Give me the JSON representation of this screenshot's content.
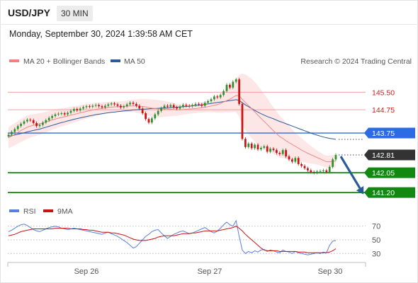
{
  "header": {
    "symbol": "USD/JPY",
    "timeframe": "30 MIN"
  },
  "timestamp": "Monday, September 30, 2024 1:39:58 AM CET",
  "credit": "Research © 2024 Trading Central",
  "colors": {
    "bollinger": "#f08080",
    "ma50": "#2a5a9a",
    "rsi": "#5a7ee0",
    "rsi_ma": "#cc1111",
    "red_level": "#cc2222",
    "blue_level": "#2d6be4",
    "green_level": "#118811",
    "candle_up": "#2f8f2f",
    "candle_down": "#cc1111",
    "arrow": "#2a5a9a"
  },
  "chart_data": [
    {
      "type": "candlestick",
      "legend": [
        {
          "name": "MA 20 + Bollinger Bands",
          "color": "#f08080"
        },
        {
          "name": "MA 50",
          "color": "#2a5a9a"
        }
      ],
      "x_ticks": [
        "Sep 26",
        "Sep 27",
        "Sep 30"
      ],
      "ylim": [
        140.9,
        146.3
      ],
      "levels": [
        {
          "value": 145.5,
          "label": "145.50",
          "style": "red_line"
        },
        {
          "value": 144.75,
          "label": "144.75",
          "style": "red_line"
        },
        {
          "value": 143.75,
          "label": "143.75",
          "style": "blue_line"
        },
        {
          "value": 142.81,
          "label": "142.81",
          "style": "last_price"
        },
        {
          "value": 142.05,
          "label": "142.05",
          "style": "green_line"
        },
        {
          "value": 141.2,
          "label": "141.20",
          "style": "green_line"
        }
      ],
      "close": [
        143.68,
        143.8,
        143.92,
        144.05,
        144.15,
        144.25,
        144.32,
        144.3,
        144.18,
        144.05,
        144.1,
        144.2,
        144.3,
        144.4,
        144.48,
        144.55,
        144.58,
        144.6,
        144.55,
        144.62,
        144.7,
        144.78,
        144.72,
        144.8,
        144.86,
        144.9,
        144.88,
        144.92,
        144.95,
        144.9,
        144.85,
        144.92,
        144.98,
        145.02,
        144.98,
        144.92,
        144.85,
        144.9,
        144.98,
        145.05,
        145.0,
        144.92,
        144.8,
        144.6,
        144.35,
        144.2,
        144.38,
        144.55,
        144.7,
        144.82,
        144.92,
        144.88,
        144.95,
        144.85,
        144.8,
        144.88,
        144.96,
        144.92,
        144.9,
        144.95,
        145.0,
        144.98,
        144.92,
        145.05,
        145.12,
        145.2,
        145.32,
        145.28,
        145.38,
        145.55,
        145.82,
        145.7,
        145.95,
        146.05,
        145.0,
        143.5,
        143.15,
        143.3,
        143.1,
        143.25,
        143.05,
        143.12,
        143.18,
        142.95,
        143.08,
        143.02,
        142.9,
        142.85,
        143.02,
        142.75,
        142.62,
        142.52,
        142.68,
        142.42,
        142.34,
        142.24,
        142.15,
        142.08,
        142.05,
        142.1,
        142.12,
        142.15,
        142.08,
        142.3,
        142.62,
        142.81
      ],
      "ma20": [
        143.55,
        143.62,
        143.7,
        143.78,
        143.86,
        143.93,
        144.0,
        144.05,
        144.08,
        144.11,
        144.14,
        144.18,
        144.22,
        144.27,
        144.31,
        144.35,
        144.39,
        144.42,
        144.45,
        144.48,
        144.52,
        144.55,
        144.58,
        144.62,
        144.65,
        144.68,
        144.71,
        144.74,
        144.77,
        144.79,
        144.81,
        144.83,
        144.85,
        144.86,
        144.87,
        144.88,
        144.88,
        144.89,
        144.9,
        144.91,
        144.91,
        144.91,
        144.9,
        144.89,
        144.87,
        144.84,
        144.82,
        144.8,
        144.79,
        144.79,
        144.79,
        144.78,
        144.77,
        144.76,
        144.75,
        144.75,
        144.76,
        144.77,
        144.78,
        144.79,
        144.8,
        144.82,
        144.84,
        144.86,
        144.88,
        144.91,
        144.94,
        144.97,
        145.02,
        145.08,
        145.14,
        145.2,
        145.28,
        145.36,
        145.35,
        145.2,
        145.06,
        144.93,
        144.8,
        144.66,
        144.52,
        144.38,
        144.25,
        144.12,
        143.98,
        143.85,
        143.72,
        143.6,
        143.52,
        143.42,
        143.34,
        143.26,
        143.18,
        143.1,
        143.02,
        142.95,
        142.88,
        142.82,
        142.76,
        142.7,
        142.64,
        142.58,
        142.52,
        142.52,
        142.53,
        142.56
      ],
      "ma50": [
        143.62,
        143.64,
        143.67,
        143.7,
        143.73,
        143.76,
        143.8,
        143.83,
        143.86,
        143.89,
        143.92,
        143.96,
        144.0,
        144.04,
        144.08,
        144.12,
        144.16,
        144.2,
        144.23,
        144.27,
        144.3,
        144.34,
        144.37,
        144.4,
        144.43,
        144.46,
        144.49,
        144.51,
        144.54,
        144.56,
        144.58,
        144.6,
        144.62,
        144.64,
        144.65,
        144.67,
        144.68,
        144.7,
        144.71,
        144.72,
        144.74,
        144.75,
        144.76,
        144.77,
        144.78,
        144.79,
        144.8,
        144.8,
        144.81,
        144.82,
        144.83,
        144.83,
        144.84,
        144.85,
        144.86,
        144.87,
        144.88,
        144.89,
        144.9,
        144.92,
        144.93,
        144.94,
        144.96,
        144.98,
        145.0,
        145.02,
        145.04,
        145.06,
        145.08,
        145.1,
        145.12,
        145.14,
        145.16,
        145.18,
        145.15,
        145.05,
        144.96,
        144.88,
        144.8,
        144.72,
        144.65,
        144.58,
        144.52,
        144.46,
        144.41,
        144.36,
        144.3,
        144.25,
        144.2,
        144.15,
        144.1,
        144.05,
        144.0,
        143.95,
        143.9,
        143.85,
        143.8,
        143.75,
        143.7,
        143.66,
        143.62,
        143.58,
        143.55,
        143.52,
        143.5,
        143.48
      ],
      "bb_width": [
        0.45,
        0.46,
        0.47,
        0.48,
        0.49,
        0.5,
        0.5,
        0.49,
        0.48,
        0.47,
        0.46,
        0.45,
        0.44,
        0.43,
        0.42,
        0.41,
        0.4,
        0.39,
        0.38,
        0.37,
        0.36,
        0.35,
        0.34,
        0.33,
        0.32,
        0.31,
        0.3,
        0.29,
        0.28,
        0.27,
        0.26,
        0.25,
        0.24,
        0.23,
        0.23,
        0.23,
        0.23,
        0.24,
        0.25,
        0.26,
        0.27,
        0.28,
        0.3,
        0.32,
        0.34,
        0.36,
        0.37,
        0.38,
        0.37,
        0.36,
        0.34,
        0.32,
        0.3,
        0.28,
        0.26,
        0.24,
        0.22,
        0.21,
        0.2,
        0.2,
        0.2,
        0.2,
        0.21,
        0.22,
        0.24,
        0.26,
        0.3,
        0.35,
        0.4,
        0.45,
        0.5,
        0.56,
        0.62,
        0.7,
        0.9,
        1.1,
        1.2,
        1.25,
        1.28,
        1.28,
        1.26,
        1.22,
        1.18,
        1.12,
        1.06,
        1.0,
        0.95,
        0.9,
        0.84,
        0.78,
        0.72,
        0.66,
        0.6,
        0.55,
        0.5,
        0.46,
        0.42,
        0.38,
        0.34,
        0.3,
        0.28,
        0.26,
        0.26,
        0.26,
        0.27,
        0.28
      ],
      "arrow": {
        "from": 142.81,
        "to": 141.2
      }
    },
    {
      "type": "line",
      "legend": [
        {
          "name": "RSI",
          "color": "#5a7ee0"
        },
        {
          "name": "9MA",
          "color": "#cc1111"
        }
      ],
      "ylim": [
        22,
        80
      ],
      "y_ticks": [
        70,
        50,
        30
      ],
      "rsi": [
        62,
        64,
        67,
        70,
        72,
        73,
        71,
        68,
        65,
        63,
        62,
        64,
        66,
        68,
        69,
        70,
        69,
        67,
        66,
        65,
        66,
        67,
        66,
        65,
        64,
        63,
        62,
        61,
        60,
        59,
        58,
        60,
        61,
        59,
        57,
        55,
        52,
        49,
        46,
        42,
        38,
        40,
        45,
        50,
        55,
        58,
        62,
        64,
        65,
        60,
        56,
        52,
        55,
        58,
        60,
        62,
        63,
        61,
        59,
        60,
        62,
        64,
        66,
        68,
        65,
        62,
        60,
        63,
        67,
        72,
        76,
        72,
        70,
        78,
        55,
        35,
        30,
        33,
        31,
        34,
        32,
        35,
        36,
        33,
        35,
        34,
        32,
        31,
        35,
        33,
        32,
        30,
        33,
        31,
        30,
        29,
        28,
        29,
        30,
        31,
        30,
        32,
        31,
        42,
        48,
        49
      ],
      "ma9": [
        56,
        57,
        58,
        60,
        62,
        63,
        64,
        65,
        66,
        66,
        66,
        66,
        66,
        66,
        66,
        67,
        67,
        67,
        67,
        67,
        66,
        66,
        66,
        66,
        65,
        65,
        64,
        64,
        63,
        62,
        61,
        61,
        61,
        60,
        60,
        59,
        58,
        57,
        55,
        53,
        51,
        50,
        49,
        49,
        49,
        50,
        51,
        52,
        54,
        55,
        56,
        56,
        56,
        56,
        57,
        58,
        59,
        59,
        59,
        60,
        60,
        61,
        62,
        63,
        63,
        63,
        63,
        63,
        64,
        65,
        66,
        67,
        68,
        70,
        67,
        63,
        58,
        54,
        50,
        46,
        42,
        38,
        35,
        34,
        34,
        34,
        34,
        33,
        33,
        33,
        33,
        33,
        33,
        32,
        32,
        32,
        31,
        31,
        31,
        31,
        31,
        31,
        31,
        32,
        34,
        37
      ]
    }
  ]
}
